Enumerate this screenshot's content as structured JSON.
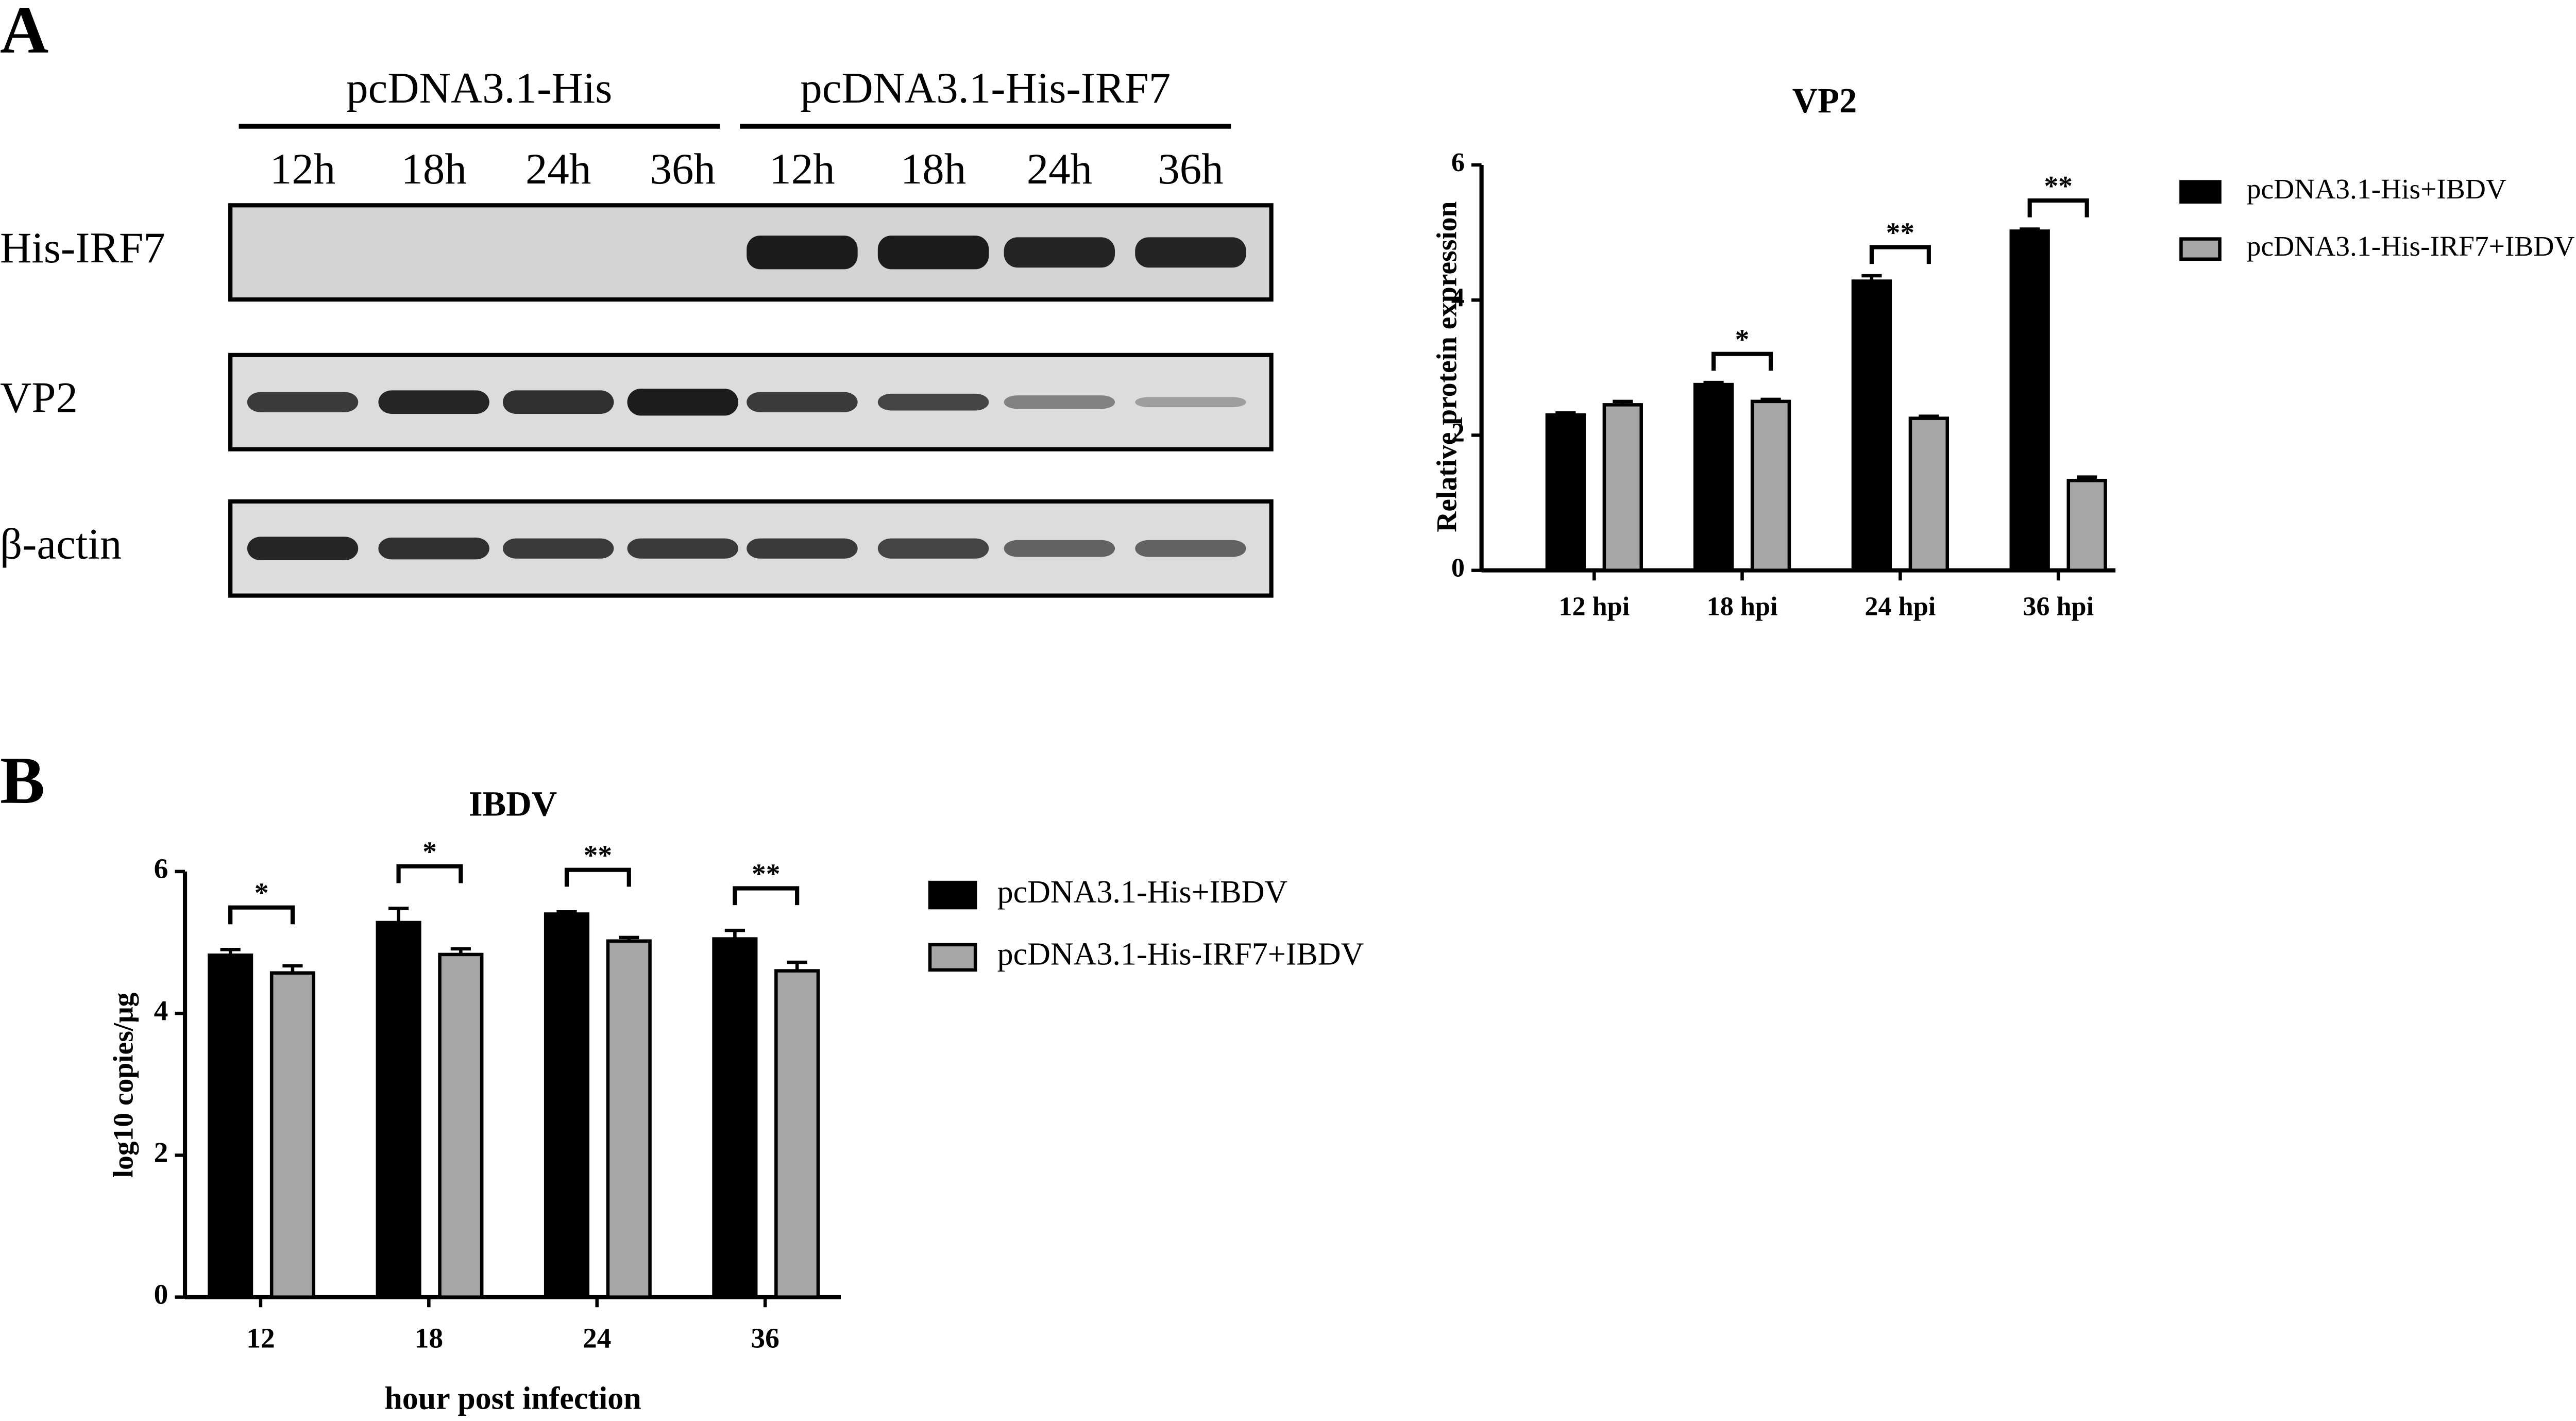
{
  "panels": [
    "A",
    "B"
  ],
  "blot": {
    "groups": [
      {
        "name": "pcDNA3.1-His",
        "lanes": [
          "12h",
          "18h",
          "24h",
          "36h"
        ]
      },
      {
        "name": "pcDNA3.1-His-IRF7",
        "lanes": [
          "12h",
          "18h",
          "24h",
          "36h"
        ]
      }
    ],
    "rows": [
      "His-IRF7",
      "VP2",
      "β-actin"
    ]
  },
  "chart_data": [
    {
      "type": "bar",
      "title": "VP2",
      "y_label": "Relative protein expression",
      "categories": [
        "12 hpi",
        "18 hpi",
        "24 hpi",
        "36 hpi"
      ],
      "series": [
        {
          "name": "pcDNA3.1-His+IBDV",
          "color": "#000000",
          "values": [
            2.3,
            2.75,
            4.28,
            5.02
          ],
          "errors": [
            0.03,
            0.03,
            0.08,
            0.03
          ]
        },
        {
          "name": "pcDNA3.1-His-IRF7+IBDV",
          "color": "#a6a6a6",
          "values": [
            2.45,
            2.5,
            2.25,
            1.33
          ],
          "errors": [
            0.05,
            0.03,
            0.03,
            0.05
          ]
        }
      ],
      "significance": [
        null,
        "*",
        "**",
        "**"
      ],
      "ylim": [
        0,
        6
      ],
      "yticks": [
        0,
        2,
        4,
        6
      ]
    },
    {
      "type": "bar",
      "title": "IBDV",
      "y_label": "log10 copies/μg",
      "x_label": "hour post infection",
      "categories": [
        "12",
        "18",
        "24",
        "36"
      ],
      "series": [
        {
          "name": "pcDNA3.1-His+IBDV",
          "color": "#000000",
          "values": [
            4.82,
            5.28,
            5.4,
            5.05
          ],
          "errors": [
            0.08,
            0.2,
            0.03,
            0.12
          ]
        },
        {
          "name": "pcDNA3.1-His-IRF7+IBDV",
          "color": "#a6a6a6",
          "values": [
            4.57,
            4.83,
            5.02,
            4.6
          ],
          "errors": [
            0.1,
            0.08,
            0.05,
            0.12
          ]
        }
      ],
      "significance": [
        "*",
        "*",
        "**",
        "**"
      ],
      "ylim": [
        0,
        6
      ],
      "yticks": [
        0,
        2,
        4,
        6
      ]
    }
  ]
}
